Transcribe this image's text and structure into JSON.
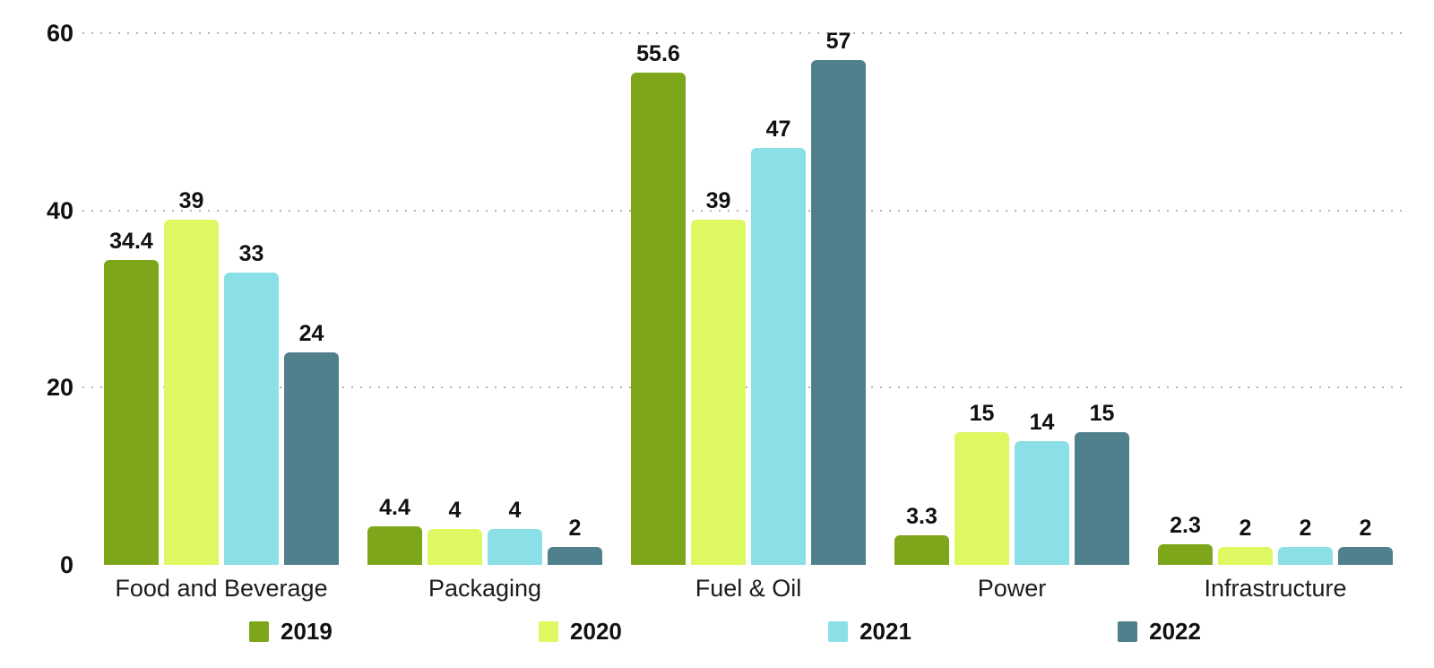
{
  "chart_data": {
    "type": "bar",
    "title": "",
    "xlabel": "",
    "ylabel": "",
    "categories": [
      "Food and Beverage",
      "Packaging",
      "Fuel & Oil",
      "Power",
      "Infrastructure"
    ],
    "series": [
      {
        "name": "2019",
        "color": "#7DA61A",
        "values": [
          34.4,
          4.4,
          55.6,
          3.3,
          2.3
        ]
      },
      {
        "name": "2020",
        "color": "#DDF860",
        "values": [
          39,
          4,
          39,
          15,
          2
        ]
      },
      {
        "name": "2021",
        "color": "#8BDFE7",
        "values": [
          33,
          4,
          47,
          14,
          2
        ]
      },
      {
        "name": "2022",
        "color": "#4F808C",
        "values": [
          24,
          2,
          57,
          15,
          2
        ]
      }
    ],
    "ylim": [
      0,
      60
    ],
    "yticks": [
      0,
      20,
      40,
      60
    ],
    "grid": "horizontal dotted",
    "gridline_color": "#b3b3b3",
    "legend_position": "bottom",
    "value_labels_shown": true
  }
}
